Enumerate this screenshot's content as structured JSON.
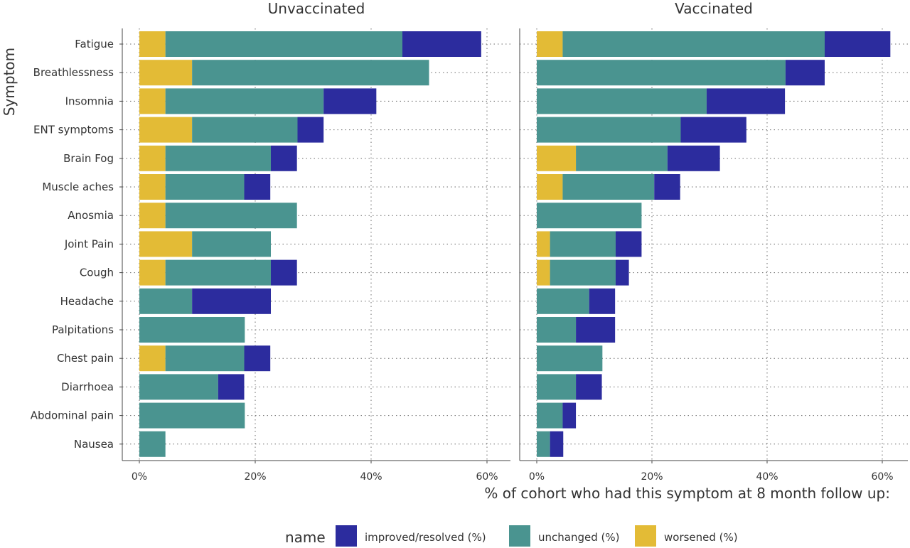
{
  "chart_data": {
    "type": "bar",
    "orientation": "horizontal",
    "stacked": true,
    "ylabel": "Symptom",
    "xlabel": "% of cohort who had this symptom at 8 month follow up:",
    "xticks": [
      "0%",
      "20%",
      "40%",
      "60%"
    ],
    "xlim": [
      0,
      64
    ],
    "legend": {
      "title": "name",
      "position": "bottom",
      "entries": [
        {
          "key": "improved",
          "label": "improved/resolved (%)",
          "color": "#2c2c9e"
        },
        {
          "key": "unchanged",
          "label": "unchanged (%)",
          "color": "#4a9490"
        },
        {
          "key": "worsened",
          "label": "worsened (%)",
          "color": "#e3bb36"
        }
      ]
    },
    "categories": [
      "Fatigue",
      "Breathlessness",
      "Insomnia",
      "ENT symptoms",
      "Brain Fog",
      "Muscle aches",
      "Anosmia",
      "Joint Pain",
      "Cough",
      "Headache",
      "Palpitations",
      "Chest pain",
      "Diarrhoea",
      "Abdominal pain",
      "Nausea"
    ],
    "panels": [
      {
        "title": "Unvaccinated",
        "series": [
          {
            "key": "worsened",
            "values": [
              4.5,
              9.1,
              4.5,
              9.1,
              4.5,
              4.5,
              4.5,
              9.1,
              4.5,
              0,
              0,
              4.5,
              0,
              0,
              0
            ]
          },
          {
            "key": "unchanged",
            "values": [
              40.9,
              40.9,
              27.3,
              18.2,
              18.2,
              13.6,
              22.7,
              13.6,
              18.2,
              9.1,
              18.2,
              13.6,
              13.6,
              18.2,
              4.5
            ]
          },
          {
            "key": "improved",
            "values": [
              13.6,
              0,
              9.1,
              4.5,
              4.5,
              4.5,
              0,
              0,
              4.5,
              13.6,
              0,
              4.5,
              4.5,
              0,
              0
            ]
          }
        ]
      },
      {
        "title": "Vaccinated",
        "series": [
          {
            "key": "worsened",
            "values": [
              4.5,
              0,
              0,
              0,
              6.8,
              4.5,
              0,
              2.3,
              2.3,
              0,
              0,
              0,
              0,
              0,
              0
            ]
          },
          {
            "key": "unchanged",
            "values": [
              45.5,
              43.2,
              29.5,
              25.0,
              15.9,
              15.9,
              18.2,
              11.4,
              11.4,
              9.1,
              6.8,
              11.4,
              6.8,
              4.5,
              2.3
            ]
          },
          {
            "key": "improved",
            "values": [
              11.4,
              6.8,
              13.6,
              11.4,
              9.1,
              4.5,
              0,
              4.5,
              2.3,
              4.5,
              6.8,
              0,
              4.5,
              2.3,
              2.3
            ]
          }
        ]
      }
    ]
  }
}
